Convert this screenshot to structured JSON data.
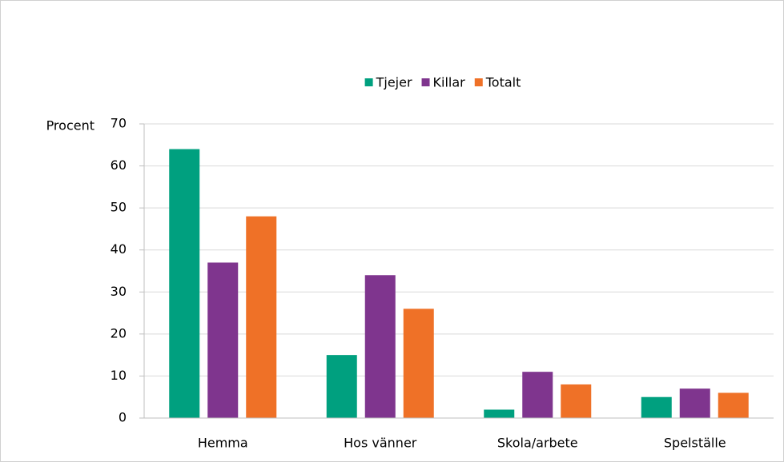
{
  "chart_data": {
    "type": "bar",
    "y_label": "Procent",
    "categories": [
      "Hemma",
      "Hos vänner",
      "Skola/arbete",
      "Spelställe"
    ],
    "series": [
      {
        "name": "Tjejer",
        "color": "#00a07f",
        "values": [
          64,
          15,
          2,
          5
        ]
      },
      {
        "name": "Killar",
        "color": "#7f358e",
        "values": [
          37,
          34,
          11,
          7
        ]
      },
      {
        "name": "Totalt",
        "color": "#ef7127",
        "values": [
          48,
          26,
          8,
          6
        ]
      }
    ],
    "ylim": [
      0,
      70
    ],
    "yticks": [
      0,
      10,
      20,
      30,
      40,
      50,
      60,
      70
    ],
    "grid": true,
    "legend": "top"
  }
}
